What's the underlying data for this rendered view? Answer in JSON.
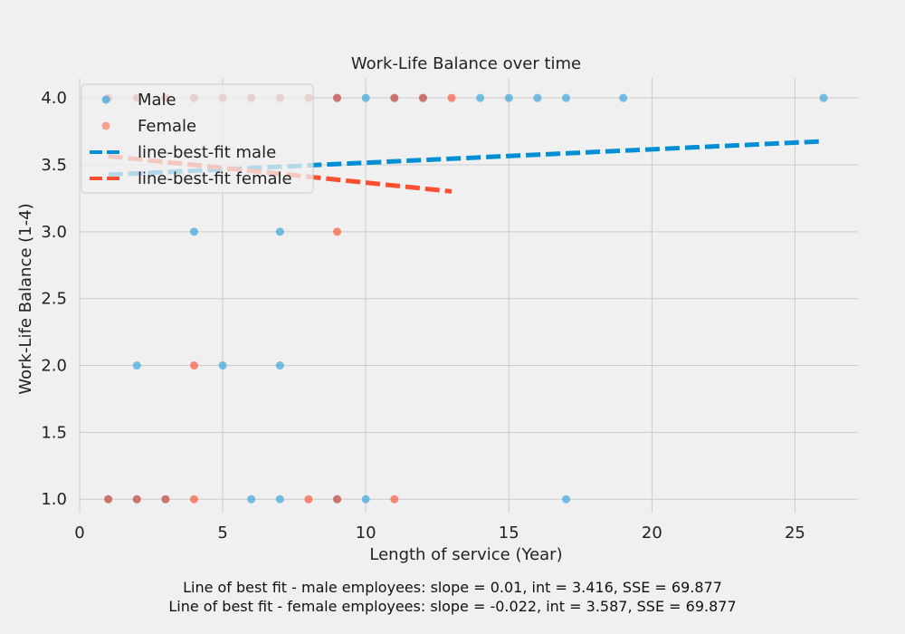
{
  "chart_data": {
    "type": "scatter",
    "title": "Work-Life Balance over time",
    "xlabel": "Length of service (Year)",
    "ylabel": "Work-Life Balance (1-4)",
    "xlim": [
      0,
      27.2
    ],
    "ylim": [
      0.9,
      4.15
    ],
    "xticks": [
      0,
      5,
      10,
      15,
      20,
      25
    ],
    "yticks": [
      1.0,
      1.5,
      2.0,
      2.5,
      3.0,
      3.5,
      4.0
    ],
    "grid": true,
    "legend_position": "top-left",
    "series": [
      {
        "name": "Male",
        "kind": "scatter",
        "color": "#30a2da",
        "points": [
          [
            1,
            4
          ],
          [
            2,
            4
          ],
          [
            3,
            4
          ],
          [
            4,
            4
          ],
          [
            5,
            4
          ],
          [
            6,
            4
          ],
          [
            7,
            4
          ],
          [
            8,
            4
          ],
          [
            9,
            4
          ],
          [
            10,
            4
          ],
          [
            11,
            4
          ],
          [
            12,
            4
          ],
          [
            14,
            4
          ],
          [
            15,
            4
          ],
          [
            16,
            4
          ],
          [
            17,
            4
          ],
          [
            19,
            4
          ],
          [
            26,
            4
          ],
          [
            4,
            3
          ],
          [
            7,
            3
          ],
          [
            2,
            2
          ],
          [
            5,
            2
          ],
          [
            7,
            2
          ],
          [
            1,
            1
          ],
          [
            2,
            1
          ],
          [
            3,
            1
          ],
          [
            6,
            1
          ],
          [
            7,
            1
          ],
          [
            9,
            1
          ],
          [
            10,
            1
          ],
          [
            17,
            1
          ]
        ]
      },
      {
        "name": "Female",
        "kind": "scatter",
        "color": "#fc4f30",
        "points": [
          [
            1,
            4
          ],
          [
            2,
            4
          ],
          [
            3,
            4
          ],
          [
            4,
            4
          ],
          [
            5,
            4
          ],
          [
            6,
            4
          ],
          [
            7,
            4
          ],
          [
            8,
            4
          ],
          [
            9,
            4
          ],
          [
            11,
            4
          ],
          [
            12,
            4
          ],
          [
            13,
            4
          ],
          [
            9,
            3
          ],
          [
            4,
            2
          ],
          [
            1,
            1
          ],
          [
            2,
            1
          ],
          [
            3,
            1
          ],
          [
            4,
            1
          ],
          [
            8,
            1
          ],
          [
            9,
            1
          ],
          [
            11,
            1
          ]
        ]
      },
      {
        "name": "line-best-fit male",
        "kind": "line",
        "color": "#008fd5",
        "slope": 0.01,
        "intercept": 3.416,
        "x_range": [
          1,
          26
        ]
      },
      {
        "name": "line-best-fit female",
        "kind": "line",
        "color": "#fc4f30",
        "slope": -0.022,
        "intercept": 3.587,
        "x_range": [
          1,
          13
        ]
      }
    ],
    "annotations": [
      "Line of best fit - male employees: slope = 0.01, int = 3.416, SSE = 69.877",
      "Line of best fit - female employees: slope = -0.022, int = 3.587, SSE = 69.877"
    ]
  }
}
